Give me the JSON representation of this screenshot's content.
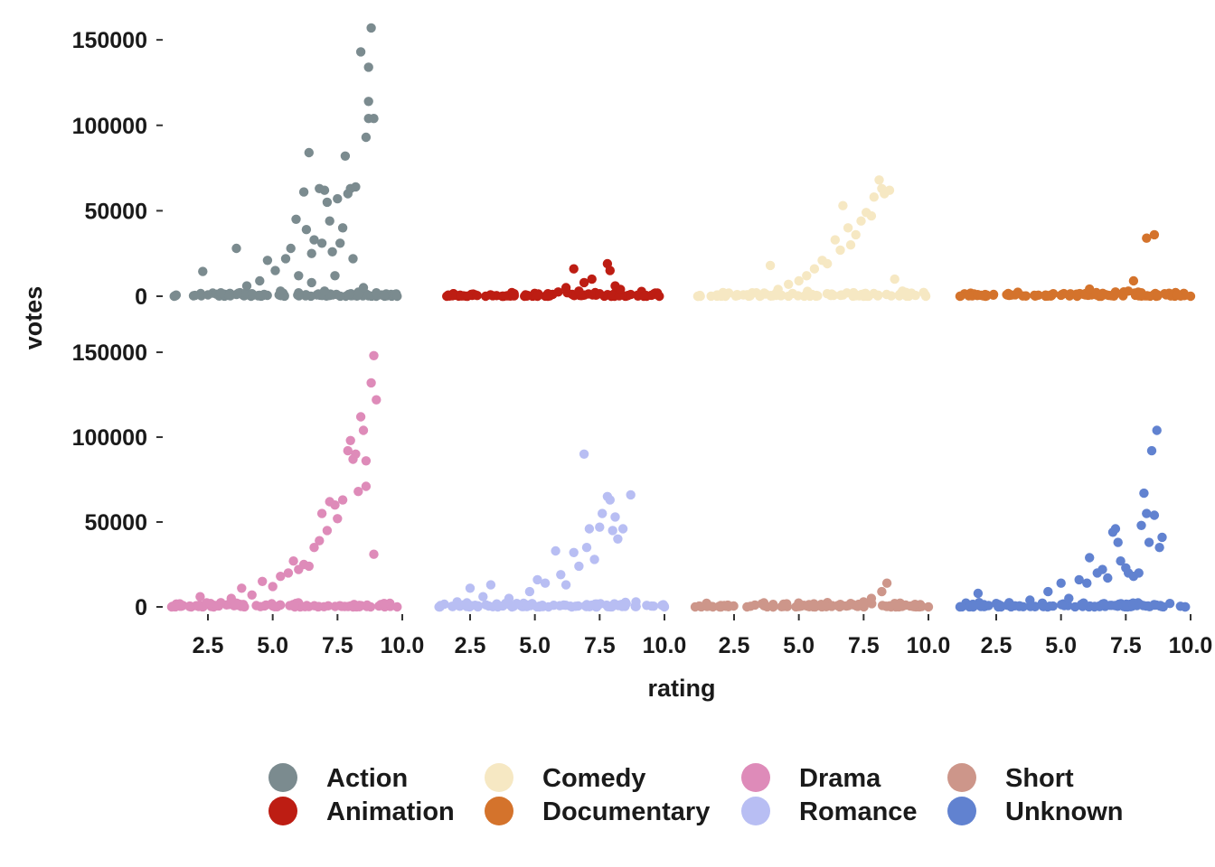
{
  "chart_data": {
    "type": "scatter",
    "layout": "facet-grid 2x4",
    "xlabel": "rating",
    "ylabel": "votes",
    "xlim": [
      1,
      10
    ],
    "ylim": [
      0,
      158000
    ],
    "x_ticks": [
      2.5,
      5.0,
      7.5,
      10.0
    ],
    "x_tick_labels": [
      "2.5",
      "5.0",
      "7.5",
      "10.0"
    ],
    "y_ticks": [
      0,
      50000,
      100000,
      150000
    ],
    "y_tick_labels": [
      "0",
      "50000",
      "100000",
      "150000"
    ],
    "grid": false,
    "legend_position": "bottom",
    "series": [
      {
        "name": "Action",
        "color": "#7b8b8f",
        "points": [
          [
            1.2,
            0
          ],
          [
            2,
            500
          ],
          [
            2.5,
            800
          ],
          [
            2.3,
            14500
          ],
          [
            3,
            2000
          ],
          [
            3.6,
            28000
          ],
          [
            4,
            6000
          ],
          [
            4.2,
            1500
          ],
          [
            4.5,
            9000
          ],
          [
            4.8,
            21000
          ],
          [
            5.1,
            15000
          ],
          [
            5.3,
            3000
          ],
          [
            5.5,
            22000
          ],
          [
            5.7,
            28000
          ],
          [
            5.9,
            45000
          ],
          [
            6,
            12000
          ],
          [
            6.2,
            61000
          ],
          [
            6.3,
            39000
          ],
          [
            6.4,
            84000
          ],
          [
            6.5,
            25000
          ],
          [
            6.6,
            33000
          ],
          [
            6.8,
            63000
          ],
          [
            6.9,
            31000
          ],
          [
            7,
            62000
          ],
          [
            7.1,
            55000
          ],
          [
            7.2,
            44000
          ],
          [
            7.3,
            26000
          ],
          [
            7.5,
            57000
          ],
          [
            7.6,
            31000
          ],
          [
            7.7,
            40000
          ],
          [
            7.8,
            82000
          ],
          [
            7.9,
            60000
          ],
          [
            8,
            63000
          ],
          [
            8.2,
            64000
          ],
          [
            8.1,
            22000
          ],
          [
            8.4,
            143000
          ],
          [
            8.6,
            93000
          ],
          [
            8.7,
            104000
          ],
          [
            8.7,
            114000
          ],
          [
            8.7,
            134000
          ],
          [
            8.8,
            157000
          ],
          [
            8.9,
            104000
          ],
          [
            8.5,
            5000
          ],
          [
            9,
            2000
          ],
          [
            9.3,
            500
          ],
          [
            9.8,
            0
          ],
          [
            6,
            2000
          ],
          [
            7,
            3000
          ],
          [
            6.5,
            8000
          ],
          [
            7.4,
            12000
          ]
        ]
      },
      {
        "name": "Animation",
        "color": "#bd1d13",
        "points": [
          [
            1.6,
            0
          ],
          [
            2.4,
            0
          ],
          [
            3.1,
            0
          ],
          [
            3.8,
            0
          ],
          [
            4.2,
            1500
          ],
          [
            4.6,
            0
          ],
          [
            5.1,
            500
          ],
          [
            5.5,
            0
          ],
          [
            5.9,
            2500
          ],
          [
            6.2,
            5000
          ],
          [
            6.5,
            16000
          ],
          [
            6.7,
            3000
          ],
          [
            6.9,
            8000
          ],
          [
            7.2,
            10000
          ],
          [
            7.5,
            1500
          ],
          [
            7.8,
            19000
          ],
          [
            7.9,
            15000
          ],
          [
            8.1,
            6000
          ],
          [
            8.3,
            4000
          ],
          [
            8.7,
            1000
          ],
          [
            9.2,
            0
          ],
          [
            9.8,
            0
          ]
        ]
      },
      {
        "name": "Comedy",
        "color": "#f6e8c3",
        "points": [
          [
            1.1,
            0
          ],
          [
            2,
            300
          ],
          [
            2.6,
            800
          ],
          [
            3.2,
            2000
          ],
          [
            3.9,
            18000
          ],
          [
            4.2,
            4000
          ],
          [
            4.6,
            7000
          ],
          [
            5,
            9000
          ],
          [
            5.3,
            12000
          ],
          [
            5.6,
            16000
          ],
          [
            5.9,
            21000
          ],
          [
            6.1,
            19000
          ],
          [
            6.4,
            33000
          ],
          [
            6.6,
            27000
          ],
          [
            6.7,
            53000
          ],
          [
            6.9,
            40000
          ],
          [
            7,
            30000
          ],
          [
            7.2,
            36000
          ],
          [
            7.4,
            44000
          ],
          [
            7.6,
            49000
          ],
          [
            7.8,
            47000
          ],
          [
            7.9,
            58000
          ],
          [
            8.1,
            68000
          ],
          [
            8.2,
            63000
          ],
          [
            8.3,
            60000
          ],
          [
            8.5,
            62000
          ],
          [
            8.7,
            10000
          ],
          [
            9,
            3000
          ],
          [
            9.5,
            500
          ],
          [
            9.9,
            0
          ]
        ]
      },
      {
        "name": "Documentary",
        "color": "#d4732c",
        "points": [
          [
            1.1,
            0
          ],
          [
            2,
            200
          ],
          [
            3,
            500
          ],
          [
            4,
            300
          ],
          [
            5,
            600
          ],
          [
            5.6,
            1200
          ],
          [
            6.1,
            4200
          ],
          [
            6.6,
            800
          ],
          [
            7.1,
            2500
          ],
          [
            7.6,
            3000
          ],
          [
            7.8,
            9000
          ],
          [
            8.1,
            2000
          ],
          [
            8.3,
            34000
          ],
          [
            8.6,
            36000
          ],
          [
            9,
            1500
          ],
          [
            9.5,
            600
          ],
          [
            10,
            0
          ]
        ]
      },
      {
        "name": "Drama",
        "color": "#de8bb9",
        "points": [
          [
            1.1,
            0
          ],
          [
            1.8,
            500
          ],
          [
            2.2,
            6000
          ],
          [
            2.6,
            2000
          ],
          [
            3,
            2500
          ],
          [
            3.4,
            5000
          ],
          [
            3.8,
            11000
          ],
          [
            4.2,
            7000
          ],
          [
            4.6,
            15000
          ],
          [
            5,
            12000
          ],
          [
            5.3,
            18000
          ],
          [
            5.6,
            20000
          ],
          [
            5.8,
            27000
          ],
          [
            6,
            22000
          ],
          [
            6.2,
            25000
          ],
          [
            6.4,
            24000
          ],
          [
            6.6,
            35000
          ],
          [
            6.8,
            39000
          ],
          [
            6.9,
            55000
          ],
          [
            7.1,
            45000
          ],
          [
            7.2,
            62000
          ],
          [
            7.4,
            60000
          ],
          [
            7.5,
            52000
          ],
          [
            7.7,
            63000
          ],
          [
            7.9,
            92000
          ],
          [
            8,
            98000
          ],
          [
            8.1,
            87000
          ],
          [
            8.2,
            90000
          ],
          [
            8.3,
            68000
          ],
          [
            8.4,
            112000
          ],
          [
            8.5,
            104000
          ],
          [
            8.6,
            71000
          ],
          [
            8.6,
            86000
          ],
          [
            8.8,
            132000
          ],
          [
            8.9,
            148000
          ],
          [
            8.9,
            31000
          ],
          [
            9,
            122000
          ],
          [
            9.3,
            2000
          ],
          [
            9.8,
            0
          ]
        ]
      },
      {
        "name": "Romance",
        "color": "#b8bef3",
        "points": [
          [
            1.3,
            0
          ],
          [
            2,
            3000
          ],
          [
            2.5,
            11000
          ],
          [
            3,
            6000
          ],
          [
            3.3,
            13000
          ],
          [
            4,
            5000
          ],
          [
            4.3,
            2000
          ],
          [
            4.8,
            9000
          ],
          [
            5.1,
            16000
          ],
          [
            5.4,
            14000
          ],
          [
            5.8,
            33000
          ],
          [
            6,
            19000
          ],
          [
            6.2,
            13000
          ],
          [
            6.5,
            32000
          ],
          [
            6.7,
            24000
          ],
          [
            6.9,
            90000
          ],
          [
            7,
            35000
          ],
          [
            7.1,
            46000
          ],
          [
            7.3,
            28000
          ],
          [
            7.5,
            47000
          ],
          [
            7.6,
            55000
          ],
          [
            7.8,
            65000
          ],
          [
            7.9,
            63000
          ],
          [
            8,
            45000
          ],
          [
            8.1,
            53000
          ],
          [
            8.2,
            40000
          ],
          [
            8.4,
            46000
          ],
          [
            8.7,
            66000
          ],
          [
            8.9,
            3000
          ],
          [
            9.5,
            500
          ],
          [
            10,
            0
          ]
        ]
      },
      {
        "name": "Short",
        "color": "#cd968a",
        "points": [
          [
            1,
            0
          ],
          [
            2,
            0
          ],
          [
            3,
            0
          ],
          [
            4,
            0
          ],
          [
            5,
            200
          ],
          [
            6,
            800
          ],
          [
            6.6,
            1500
          ],
          [
            7,
            2000
          ],
          [
            7.5,
            3000
          ],
          [
            7.8,
            5000
          ],
          [
            8.2,
            9000
          ],
          [
            8.4,
            14000
          ],
          [
            8.7,
            2000
          ],
          [
            9.3,
            500
          ],
          [
            10,
            0
          ]
        ]
      },
      {
        "name": "Unknown",
        "color": "#6182d0",
        "points": [
          [
            1.1,
            0
          ],
          [
            1.8,
            8000
          ],
          [
            2.5,
            2000
          ],
          [
            3,
            2500
          ],
          [
            3.8,
            4000
          ],
          [
            4.5,
            9000
          ],
          [
            5,
            14000
          ],
          [
            5.3,
            5000
          ],
          [
            5.7,
            16000
          ],
          [
            6,
            14000
          ],
          [
            6.1,
            29000
          ],
          [
            6.4,
            20000
          ],
          [
            6.6,
            22000
          ],
          [
            6.8,
            17000
          ],
          [
            7,
            44000
          ],
          [
            7.1,
            46000
          ],
          [
            7.2,
            38000
          ],
          [
            7.3,
            27000
          ],
          [
            7.5,
            23000
          ],
          [
            7.6,
            20000
          ],
          [
            7.8,
            18000
          ],
          [
            8,
            20000
          ],
          [
            8.1,
            48000
          ],
          [
            8.2,
            67000
          ],
          [
            8.3,
            55000
          ],
          [
            8.4,
            38000
          ],
          [
            8.5,
            92000
          ],
          [
            8.6,
            54000
          ],
          [
            8.7,
            104000
          ],
          [
            8.8,
            35000
          ],
          [
            8.9,
            41000
          ],
          [
            9.2,
            2000
          ],
          [
            9.8,
            0
          ]
        ]
      }
    ]
  }
}
